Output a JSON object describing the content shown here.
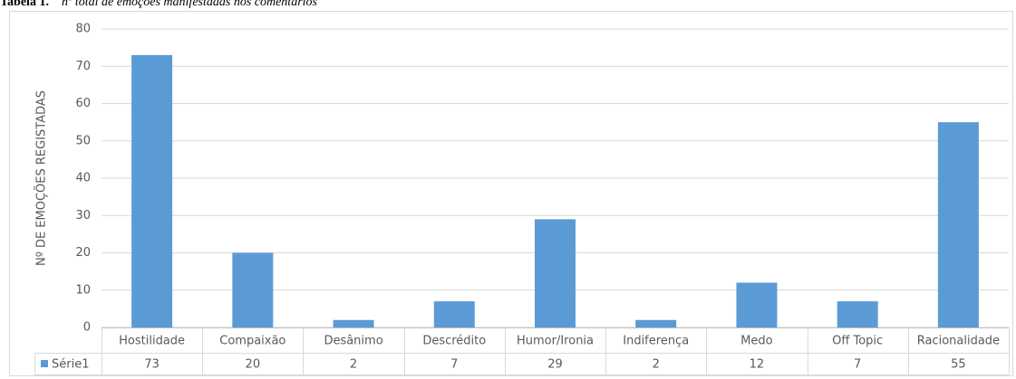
{
  "caption": {
    "label": "Tabela 1.",
    "text": "nº total de emoções manifestadas nos comentários"
  },
  "chart_data": {
    "type": "bar",
    "ylabel": "Nº DE EMOÇÕES REGISTADAS",
    "categories": [
      "Hostilidade",
      "Compaixão",
      "Desânimo",
      "Descrédito",
      "Humor/Ironia",
      "Indiferença",
      "Medo",
      "Off Topic",
      "Racionalidade"
    ],
    "series": [
      {
        "name": "Série1",
        "color": "#5b9bd5",
        "values": [
          73,
          20,
          2,
          7,
          29,
          2,
          12,
          7,
          55
        ]
      }
    ],
    "ylim": [
      0,
      80
    ],
    "yticks": [
      0,
      10,
      20,
      30,
      40,
      50,
      60,
      70,
      80
    ],
    "grid": true
  }
}
